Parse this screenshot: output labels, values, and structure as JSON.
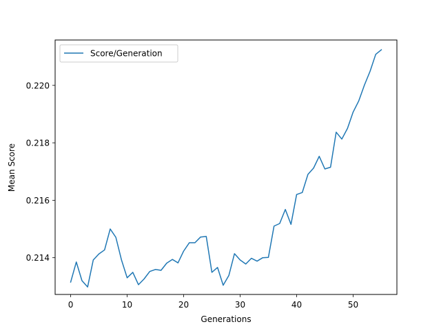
{
  "chart_data": {
    "type": "line",
    "title": "",
    "xlabel": "Generations",
    "ylabel": "Mean Score",
    "xlim": [
      -2.75,
      57.75
    ],
    "ylim": [
      0.21272,
      0.22158
    ],
    "xticks": [
      0,
      10,
      20,
      30,
      40,
      50
    ],
    "yticks": [
      0.214,
      0.216,
      0.218,
      0.22
    ],
    "ytick_labels": [
      "0.214",
      "0.216",
      "0.218",
      "0.220"
    ],
    "grid": false,
    "legend": {
      "position": "upper-left",
      "entries": [
        "Score/Generation"
      ]
    },
    "series": [
      {
        "name": "Score/Generation",
        "color": "#1f77b4",
        "x": [
          0,
          1,
          2,
          3,
          4,
          5,
          6,
          7,
          8,
          9,
          10,
          11,
          12,
          13,
          14,
          15,
          16,
          17,
          18,
          19,
          20,
          21,
          22,
          23,
          24,
          25,
          26,
          27,
          28,
          29,
          30,
          31,
          32,
          33,
          34,
          35,
          36,
          37,
          38,
          39,
          40,
          41,
          42,
          43,
          44,
          45,
          46,
          47,
          48,
          49,
          50,
          51,
          52,
          53,
          54,
          55
        ],
        "y": [
          0.21315,
          0.21385,
          0.2132,
          0.21298,
          0.21392,
          0.21413,
          0.21427,
          0.215,
          0.21471,
          0.21392,
          0.2133,
          0.21349,
          0.21306,
          0.21326,
          0.21352,
          0.21359,
          0.21356,
          0.21381,
          0.21394,
          0.21382,
          0.21423,
          0.21452,
          0.21452,
          0.21472,
          0.21474,
          0.21349,
          0.21366,
          0.21304,
          0.21338,
          0.21414,
          0.21392,
          0.21378,
          0.21398,
          0.21388,
          0.214,
          0.21401,
          0.2151,
          0.21519,
          0.21568,
          0.21516,
          0.2162,
          0.21627,
          0.2169,
          0.21712,
          0.21753,
          0.21709,
          0.21715,
          0.21837,
          0.21813,
          0.2185,
          0.21907,
          0.21946,
          0.22001,
          0.22049,
          0.22108,
          0.22124
        ]
      }
    ]
  }
}
